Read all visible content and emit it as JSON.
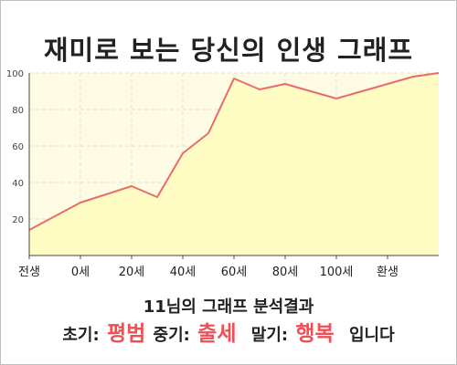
{
  "chart_data": {
    "type": "area",
    "title": "재미로 보는 당신의 인생 그래프",
    "xlabel": "",
    "ylabel": "",
    "categories": [
      "전생",
      "0세",
      "20세",
      "40세",
      "60세",
      "80세",
      "100세",
      "환생"
    ],
    "series": [
      {
        "name": "",
        "x": [
          -1,
          0,
          1,
          1.5,
          2,
          2.5,
          3,
          3.5,
          4,
          4.5,
          5,
          5.5,
          6,
          6.5,
          7
        ],
        "values": [
          14,
          29,
          38,
          32,
          56,
          67,
          97,
          91,
          94,
          90,
          86,
          90,
          94,
          98,
          100
        ]
      }
    ],
    "ylim": [
      0,
      100
    ],
    "yticks": [
      20,
      40,
      60,
      80,
      100
    ],
    "grid": true,
    "colors": {
      "line": "#ea6b6b",
      "fill": "#fffcc4",
      "plot_bg": "#fefce4",
      "grid": "#e2e0cc"
    }
  },
  "summary": {
    "heading": "11님의 그래프 분석결과",
    "early_label": "초기:",
    "early_value": "평범",
    "mid_label": "중기:",
    "mid_value": "출세",
    "late_label": "말기:",
    "late_value": "행복",
    "ending": "입니다"
  }
}
